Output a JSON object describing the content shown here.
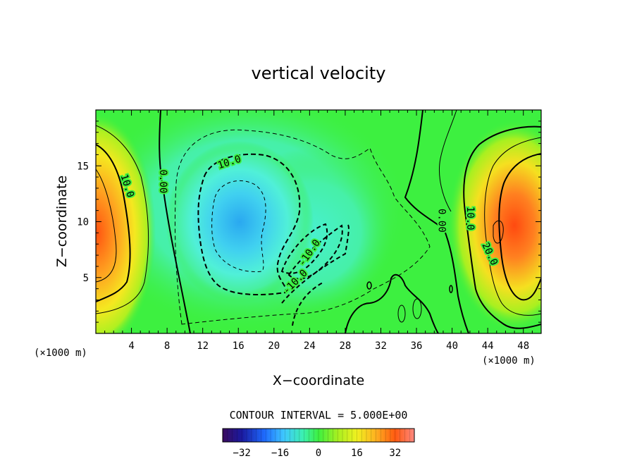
{
  "chart_data": {
    "type": "heatmap",
    "title": "vertical velocity",
    "xlabel": "X−coordinate",
    "ylabel": "Z−coordinate",
    "x_unit": "(×1000 m)",
    "y_unit": "(×1000 m)",
    "xlim": [
      0,
      50
    ],
    "ylim": [
      0,
      20
    ],
    "x_ticks": [
      4,
      8,
      12,
      16,
      20,
      24,
      28,
      32,
      36,
      40,
      44,
      48
    ],
    "x_tick_labels": [
      "4",
      "8",
      "12",
      "16",
      "20",
      "24",
      "28",
      "32",
      "36",
      "40",
      "44",
      "48"
    ],
    "y_ticks": [
      5,
      10,
      15
    ],
    "y_tick_labels": [
      "5",
      "10",
      "15"
    ],
    "contour_interval_text": "CONTOUR INTERVAL = 5.000E+00",
    "contour_labels": [
      {
        "text": "10.0",
        "x": 3.5,
        "z": 13.2,
        "angle": 72
      },
      {
        "text": "0.00",
        "x": 7.5,
        "z": 13.6,
        "angle": 90
      },
      {
        "text": "10.0",
        "x": 15.0,
        "z": 15.3,
        "angle": -18
      },
      {
        "text": "-10.0",
        "x": 24.0,
        "z": 7.2,
        "angle": -55
      },
      {
        "text": "-10.0",
        "x": 22.4,
        "z": 4.6,
        "angle": -45
      },
      {
        "text": "0.00",
        "x": 38.8,
        "z": 10.1,
        "angle": 90
      },
      {
        "text": "10.0",
        "x": 42.0,
        "z": 10.3,
        "angle": 90
      },
      {
        "text": "20.0",
        "x": 44.2,
        "z": 7.1,
        "angle": 65
      }
    ],
    "colorbar": {
      "vmin": -40,
      "vmax": 40,
      "ticks": [
        -32,
        -16,
        0,
        16,
        32
      ],
      "tick_labels": [
        "−32",
        "−16",
        "0",
        "16",
        "32"
      ]
    },
    "field_features": [
      {
        "x": 0.0,
        "z": 8.5,
        "value": 28
      },
      {
        "x": 15.5,
        "z": 9.0,
        "value": -18
      },
      {
        "x": 25.0,
        "z": 6.5,
        "value": -8
      },
      {
        "x": 45.5,
        "z": 9.0,
        "value": 30
      },
      {
        "x": 49.5,
        "z": 7.0,
        "value": 24
      }
    ]
  }
}
